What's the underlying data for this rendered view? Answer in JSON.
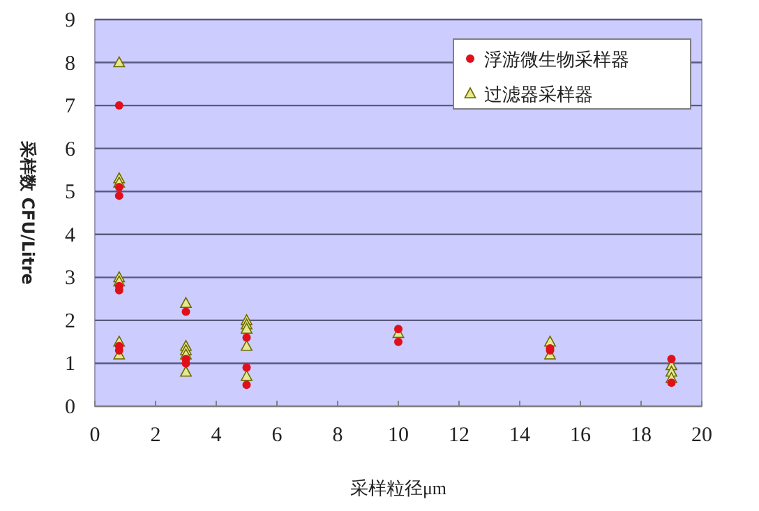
{
  "chart_data": {
    "type": "scatter",
    "xlabel": "采样粒径μm",
    "ylabel": "采样数 CFU/Litre",
    "xlim": [
      0,
      20
    ],
    "xticks": [
      0,
      2,
      4,
      6,
      8,
      10,
      12,
      14,
      16,
      18,
      20
    ],
    "ylim": [
      0,
      9
    ],
    "yticks": [
      0,
      1,
      2,
      3,
      4,
      5,
      6,
      7,
      8,
      9
    ],
    "grid": "y",
    "legend": "top right",
    "series": [
      {
        "name": "浮游微生物采样器",
        "color": "#e0101a",
        "marker": "circle",
        "x": [
          0.8,
          0.8,
          0.8,
          0.8,
          0.8,
          0.8,
          0.8,
          3,
          3,
          3,
          5,
          5,
          5,
          10,
          10,
          15,
          15,
          19,
          19
        ],
        "values": [
          7.0,
          5.1,
          4.9,
          2.8,
          2.7,
          1.4,
          1.3,
          2.2,
          1.1,
          1.0,
          1.6,
          0.9,
          0.5,
          1.8,
          1.5,
          1.35,
          1.3,
          1.1,
          0.55
        ]
      },
      {
        "name": "过滤器采样器",
        "color": "#e8e890",
        "marker": "triangle",
        "x": [
          0.8,
          0.8,
          0.8,
          0.8,
          0.8,
          0.8,
          0.8,
          3,
          3,
          3,
          3,
          3,
          5,
          5,
          5,
          5,
          5,
          10,
          15,
          15,
          19,
          19,
          19
        ],
        "values": [
          8.0,
          5.3,
          5.2,
          3.0,
          2.9,
          1.5,
          1.2,
          2.4,
          1.4,
          1.3,
          1.2,
          0.8,
          2.0,
          1.9,
          1.8,
          1.4,
          0.7,
          1.7,
          1.5,
          1.2,
          0.95,
          0.8,
          0.65
        ]
      }
    ]
  }
}
